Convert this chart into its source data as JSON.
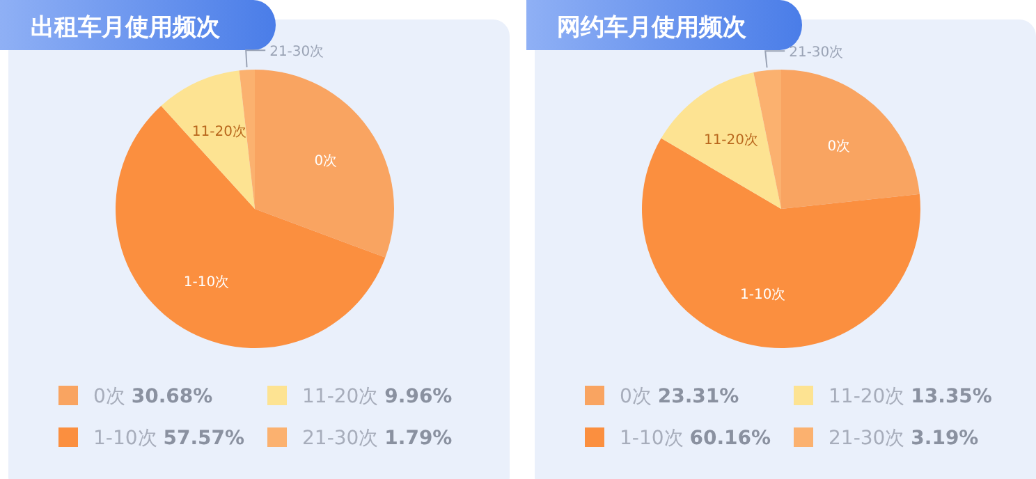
{
  "chart_data": [
    {
      "type": "pie",
      "title": "出租车月使用频次",
      "categories": [
        "0次",
        "1-10次",
        "11-20次",
        "21-30次"
      ],
      "values": [
        30.68,
        57.57,
        9.96,
        1.79
      ],
      "colors": [
        "#f9a461",
        "#fb8f3f",
        "#fde392",
        "#fbb16f"
      ],
      "value_labels": [
        "30.68%",
        "57.57%",
        "9.96%",
        "1.79%"
      ],
      "legend": "bottom"
    },
    {
      "type": "pie",
      "title": "网约车月使用频次",
      "categories": [
        "0次",
        "1-10次",
        "11-20次",
        "21-30次"
      ],
      "values": [
        23.31,
        60.16,
        13.35,
        3.19
      ],
      "colors": [
        "#f9a461",
        "#fb8f3f",
        "#fde392",
        "#fbb16f"
      ],
      "value_labels": [
        "23.31%",
        "60.16%",
        "13.35%",
        "3.19%"
      ],
      "legend": "bottom"
    }
  ]
}
